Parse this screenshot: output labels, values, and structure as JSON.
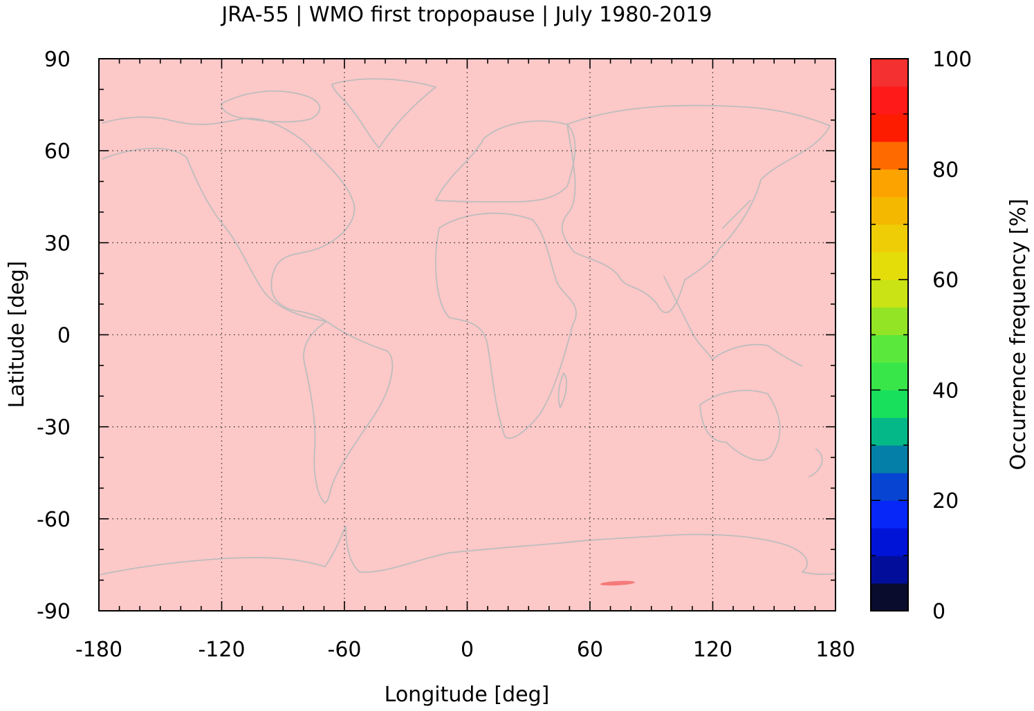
{
  "chart_data": {
    "type": "heatmap",
    "title": "JRA-55 | WMO first tropopause | July 1980-2019",
    "xlabel": "Longitude [deg]",
    "ylabel": "Latitude [deg]",
    "xlim": [
      -180,
      180
    ],
    "ylim": [
      -90,
      90
    ],
    "xticks": [
      -180,
      -120,
      -60,
      0,
      60,
      120,
      180
    ],
    "yticks": [
      90,
      60,
      30,
      0,
      -30,
      -60,
      -90
    ],
    "xtick_labels": [
      "-180",
      "-120",
      "-60",
      "0",
      "60",
      "120",
      "180"
    ],
    "ytick_labels": [
      "90",
      "60",
      "30",
      "0",
      "-30",
      "-60",
      "-90"
    ],
    "grid": true,
    "background_value_range": [
      95,
      100
    ],
    "background_color": "#fdc8c8",
    "coastline_color": "#bdbdbd",
    "anomalies": [
      {
        "value_range": [
          90,
          95
        ],
        "color": "#f47a7a",
        "lon": [
          65,
          82
        ],
        "lat": [
          -81.7,
          -80.3
        ]
      }
    ],
    "colorbar": {
      "label": "Occurrence frequency [%]",
      "min": 0,
      "max": 100,
      "step": 5,
      "tick_values": [
        0,
        20,
        40,
        60,
        80,
        100
      ],
      "tick_labels": [
        "0",
        "20",
        "40",
        "60",
        "80",
        "100"
      ],
      "colors": [
        "#0a0c2e",
        "#020e99",
        "#0014d8",
        "#0627f8",
        "#0844d2",
        "#0480a8",
        "#05b887",
        "#19e05c",
        "#39e64a",
        "#5be83c",
        "#93e424",
        "#c9e315",
        "#e5dd0a",
        "#efcd06",
        "#f4b800",
        "#fca300",
        "#fe6a00",
        "#fe1c00",
        "#ff1a1a",
        "#f43030",
        "#f47a7a",
        "#fdc8c8"
      ]
    }
  }
}
